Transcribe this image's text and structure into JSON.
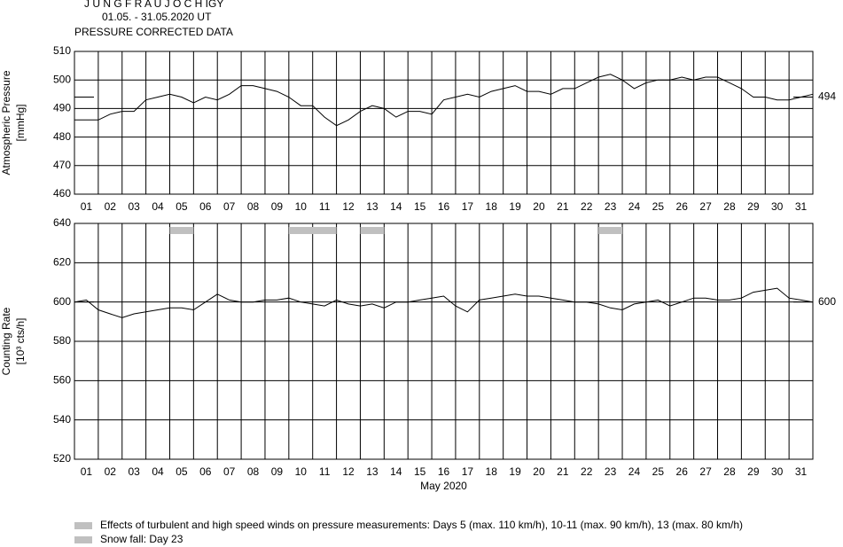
{
  "title_lines": [
    "J U N G F R A U J O C H  IGY",
    "01.05. - 31.05.2020  UT",
    "PRESSURE CORRECTED DATA"
  ],
  "chart_data": [
    {
      "type": "line",
      "ylabel": [
        "Atmospheric Pressure",
        "[mmHg]"
      ],
      "xlim": [
        0,
        31
      ],
      "xticks": [
        {
          "value": 0.5,
          "label": "01"
        },
        {
          "value": 1.5,
          "label": "02"
        },
        {
          "value": 2.5,
          "label": "03"
        },
        {
          "value": 3.5,
          "label": "04"
        },
        {
          "value": 4.5,
          "label": "05"
        },
        {
          "value": 5.5,
          "label": "06"
        },
        {
          "value": 6.5,
          "label": "07"
        },
        {
          "value": 7.5,
          "label": "08"
        },
        {
          "value": 8.5,
          "label": "09"
        },
        {
          "value": 9.5,
          "label": "10"
        },
        {
          "value": 10.5,
          "label": "11"
        },
        {
          "value": 11.5,
          "label": "12"
        },
        {
          "value": 12.5,
          "label": "13"
        },
        {
          "value": 13.5,
          "label": "14"
        },
        {
          "value": 14.5,
          "label": "15"
        },
        {
          "value": 15.5,
          "label": "16"
        },
        {
          "value": 16.5,
          "label": "17"
        },
        {
          "value": 17.5,
          "label": "18"
        },
        {
          "value": 18.5,
          "label": "19"
        },
        {
          "value": 19.5,
          "label": "20"
        },
        {
          "value": 20.5,
          "label": "21"
        },
        {
          "value": 21.5,
          "label": "22"
        },
        {
          "value": 22.5,
          "label": "23"
        },
        {
          "value": 23.5,
          "label": "24"
        },
        {
          "value": 24.5,
          "label": "25"
        },
        {
          "value": 25.5,
          "label": "26"
        },
        {
          "value": 26.5,
          "label": "27"
        },
        {
          "value": 27.5,
          "label": "28"
        },
        {
          "value": 28.5,
          "label": "29"
        },
        {
          "value": 29.5,
          "label": "30"
        },
        {
          "value": 30.5,
          "label": "31"
        }
      ],
      "ylim": [
        460,
        510
      ],
      "yticks": [
        460,
        470,
        480,
        490,
        500,
        510
      ],
      "grid": true,
      "reference": {
        "value": 494,
        "label": "494"
      },
      "x": [
        0,
        0.5,
        1,
        1.5,
        2,
        2.5,
        3,
        3.5,
        4,
        4.5,
        5,
        5.5,
        6,
        6.5,
        7,
        7.5,
        8,
        8.5,
        9,
        9.5,
        10,
        10.5,
        11,
        11.5,
        12,
        12.5,
        13,
        13.5,
        14,
        14.5,
        15,
        15.5,
        16,
        16.5,
        17,
        17.5,
        18,
        18.5,
        19,
        19.5,
        20,
        20.5,
        21,
        21.5,
        22,
        22.5,
        23,
        23.5,
        24,
        24.5,
        25,
        25.5,
        26,
        26.5,
        27,
        27.5,
        28,
        28.5,
        29,
        29.5,
        30,
        30.5,
        31
      ],
      "series": [
        {
          "color": "#000000",
          "values": [
            486,
            486,
            486,
            488,
            489,
            489,
            493,
            494,
            495,
            494,
            492,
            494,
            493,
            495,
            498,
            498,
            497,
            496,
            494,
            491,
            491,
            487,
            484,
            486,
            489,
            491,
            490,
            487,
            489,
            489,
            488,
            493,
            494,
            495,
            494,
            496,
            497,
            498,
            496,
            496,
            495,
            497,
            497,
            499,
            501,
            502,
            500,
            497,
            499,
            500,
            500,
            501,
            500,
            501,
            501,
            499,
            497,
            494,
            494,
            493,
            493,
            494,
            495
          ]
        }
      ]
    },
    {
      "type": "line",
      "ylabel": [
        "Counting Rate",
        "[10³ cts/h]"
      ],
      "xlabel": "May 2020",
      "xlim": [
        0,
        31
      ],
      "xticks": [
        {
          "value": 0.5,
          "label": "01"
        },
        {
          "value": 1.5,
          "label": "02"
        },
        {
          "value": 2.5,
          "label": "03"
        },
        {
          "value": 3.5,
          "label": "04"
        },
        {
          "value": 4.5,
          "label": "05"
        },
        {
          "value": 5.5,
          "label": "06"
        },
        {
          "value": 6.5,
          "label": "07"
        },
        {
          "value": 7.5,
          "label": "08"
        },
        {
          "value": 8.5,
          "label": "09"
        },
        {
          "value": 9.5,
          "label": "10"
        },
        {
          "value": 10.5,
          "label": "11"
        },
        {
          "value": 11.5,
          "label": "12"
        },
        {
          "value": 12.5,
          "label": "13"
        },
        {
          "value": 13.5,
          "label": "14"
        },
        {
          "value": 14.5,
          "label": "15"
        },
        {
          "value": 15.5,
          "label": "16"
        },
        {
          "value": 16.5,
          "label": "17"
        },
        {
          "value": 17.5,
          "label": "18"
        },
        {
          "value": 18.5,
          "label": "19"
        },
        {
          "value": 19.5,
          "label": "20"
        },
        {
          "value": 20.5,
          "label": "21"
        },
        {
          "value": 21.5,
          "label": "22"
        },
        {
          "value": 22.5,
          "label": "23"
        },
        {
          "value": 23.5,
          "label": "24"
        },
        {
          "value": 24.5,
          "label": "25"
        },
        {
          "value": 25.5,
          "label": "26"
        },
        {
          "value": 26.5,
          "label": "27"
        },
        {
          "value": 27.5,
          "label": "28"
        },
        {
          "value": 28.5,
          "label": "29"
        },
        {
          "value": 29.5,
          "label": "30"
        },
        {
          "value": 30.5,
          "label": "31"
        }
      ],
      "ylim": [
        520,
        640
      ],
      "yticks": [
        520,
        540,
        560,
        580,
        600,
        620,
        640
      ],
      "grid": true,
      "reference": {
        "value": 600,
        "label": "600"
      },
      "highlights": [
        {
          "start": 4,
          "end": 5
        },
        {
          "start": 9,
          "end": 11
        },
        {
          "start": 12,
          "end": 13
        },
        {
          "start": 22,
          "end": 23
        }
      ],
      "highlight_color": "#c0c0c0",
      "x": [
        0,
        0.5,
        1,
        1.5,
        2,
        2.5,
        3,
        3.5,
        4,
        4.5,
        5,
        5.5,
        6,
        6.5,
        7,
        7.5,
        8,
        8.5,
        9,
        9.5,
        10,
        10.5,
        11,
        11.5,
        12,
        12.5,
        13,
        13.5,
        14,
        14.5,
        15,
        15.5,
        16,
        16.5,
        17,
        17.5,
        18,
        18.5,
        19,
        19.5,
        20,
        20.5,
        21,
        21.5,
        22,
        22.5,
        23,
        23.5,
        24,
        24.5,
        25,
        25.5,
        26,
        26.5,
        27,
        27.5,
        28,
        28.5,
        29,
        29.5,
        30,
        30.5,
        31
      ],
      "series": [
        {
          "color": "#000000",
          "values": [
            600,
            601,
            596,
            594,
            592,
            594,
            595,
            596,
            597,
            597,
            596,
            600,
            604,
            601,
            600,
            600,
            601,
            601,
            602,
            600,
            599,
            598,
            601,
            599,
            598,
            599,
            597,
            600,
            600,
            601,
            602,
            603,
            598,
            595,
            601,
            602,
            603,
            604,
            603,
            603,
            602,
            601,
            600,
            600,
            599,
            597,
            596,
            599,
            600,
            601,
            598,
            600,
            602,
            602,
            601,
            601,
            602,
            605,
            606,
            607,
            602,
            601,
            600
          ]
        }
      ]
    }
  ],
  "legend": [
    {
      "label": "Effects of turbulent and high speed winds on pressure measurements: Days 5 (max. 110 km/h), 10-11 (max. 90 km/h), 13 (max. 80 km/h)",
      "color": "#c0c0c0"
    },
    {
      "label": "Snow fall: Day 23",
      "color": "#c0c0c0"
    }
  ]
}
